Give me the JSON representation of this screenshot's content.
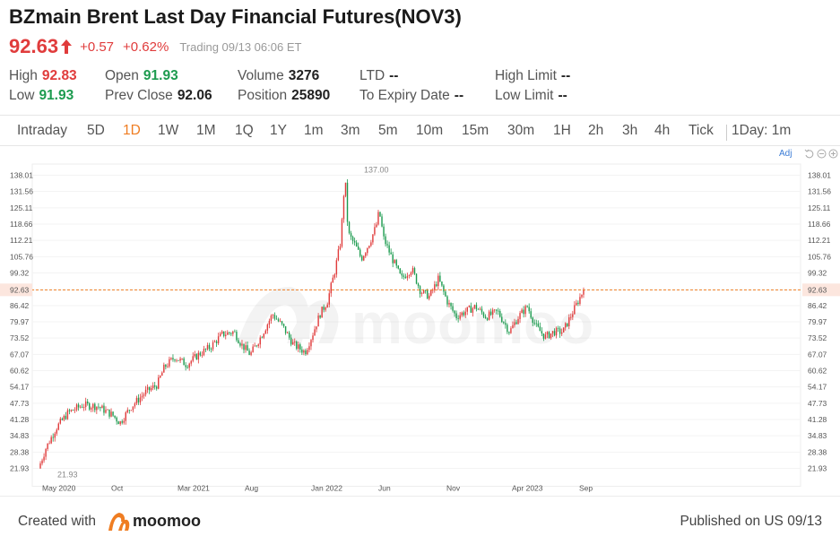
{
  "header": {
    "title": "BZmain Brent Last Day Financial Futures(NOV3)",
    "price": "92.63",
    "change": "+0.57",
    "change_pct": "+0.62%",
    "trading_status": "Trading 09/13 06:06 ET",
    "up_color": "#e03c3c",
    "down_color": "#1d9b4f",
    "accent_color": "#ef7d22"
  },
  "stats": {
    "high_label": "High",
    "high_value": "92.83",
    "low_label": "Low",
    "low_value": "91.93",
    "open_label": "Open",
    "open_value": "91.93",
    "prev_close_label": "Prev Close",
    "prev_close_value": "92.06",
    "volume_label": "Volume",
    "volume_value": "3276",
    "position_label": "Position",
    "position_value": "25890",
    "ltd_label": "LTD",
    "ltd_value": "--",
    "expiry_label": "To Expiry Date",
    "expiry_value": "--",
    "high_limit_label": "High Limit",
    "high_limit_value": "--",
    "low_limit_label": "Low Limit",
    "low_limit_value": "--"
  },
  "tabs": [
    "Intraday",
    "5D",
    "1D",
    "1W",
    "1M",
    "1Q",
    "1Y",
    "1m",
    "3m",
    "5m",
    "10m",
    "15m",
    "30m",
    "1H",
    "2h",
    "3h",
    "4h",
    "Tick"
  ],
  "active_tab": "1D",
  "interval_label": "1Day: 1m",
  "chart_controls": {
    "adj_label": "Adj",
    "reset_icon": "undo-icon",
    "zoom_out_icon": "minus-circle-icon",
    "zoom_in_icon": "plus-circle-icon"
  },
  "watermark": "moomoo",
  "footer": {
    "created_label": "Created with",
    "brand": "moomoo",
    "published": "Published on US 09/13"
  },
  "chart_data": {
    "type": "candlestick",
    "ylim": [
      21.93,
      138.01
    ],
    "y_ticks": [
      "138.01",
      "131.56",
      "125.11",
      "118.66",
      "112.21",
      "105.76",
      "99.32",
      "92.63",
      "86.42",
      "79.97",
      "73.52",
      "67.07",
      "60.62",
      "54.17",
      "47.73",
      "41.28",
      "34.83",
      "28.38",
      "21.93"
    ],
    "x_ticks": [
      "May 2020",
      "Oct",
      "Mar 2021",
      "Aug",
      "Jan 2022",
      "Jun",
      "Nov",
      "Apr 2023",
      "Sep"
    ],
    "last_price": 92.63,
    "max_label": "137.00",
    "min_label": "21.93",
    "up_color": "#e03c3c",
    "down_color": "#1d9b4f",
    "last_price_line_color": "#ef7d22",
    "series": [
      {
        "values": [
          [
            0,
            21.93
          ],
          [
            5,
            30
          ],
          [
            12,
            38
          ],
          [
            20,
            44
          ],
          [
            30,
            47
          ],
          [
            40,
            46.5
          ],
          [
            50,
            43
          ],
          [
            55,
            40
          ],
          [
            62,
            46
          ],
          [
            72,
            52
          ],
          [
            80,
            55
          ],
          [
            85,
            62
          ],
          [
            92,
            66
          ],
          [
            100,
            63
          ],
          [
            108,
            67
          ],
          [
            116,
            70
          ],
          [
            124,
            75
          ],
          [
            132,
            76
          ],
          [
            137,
            71
          ],
          [
            143,
            67
          ],
          [
            150,
            74
          ],
          [
            158,
            83
          ],
          [
            165,
            78
          ],
          [
            172,
            71
          ],
          [
            180,
            68
          ],
          [
            185,
            75
          ],
          [
            190,
            83
          ],
          [
            195,
            88
          ],
          [
            200,
            100
          ],
          [
            204,
            112
          ],
          [
            206,
            130
          ],
          [
            207,
            137
          ],
          [
            209,
            115
          ],
          [
            214,
            110
          ],
          [
            218,
            105
          ],
          [
            224,
            112
          ],
          [
            228,
            118
          ],
          [
            230,
            124
          ],
          [
            233,
            113
          ],
          [
            238,
            106
          ],
          [
            245,
            97
          ],
          [
            252,
            101
          ],
          [
            258,
            92
          ],
          [
            264,
            90
          ],
          [
            270,
            97
          ],
          [
            276,
            88
          ],
          [
            282,
            82
          ],
          [
            288,
            84
          ],
          [
            295,
            86
          ],
          [
            302,
            82
          ],
          [
            310,
            84
          ],
          [
            318,
            76
          ],
          [
            324,
            82
          ],
          [
            330,
            86
          ],
          [
            336,
            78
          ],
          [
            342,
            74
          ],
          [
            348,
            76
          ],
          [
            354,
            76
          ],
          [
            360,
            83
          ],
          [
            365,
            89
          ],
          [
            368,
            92.63
          ]
        ]
      }
    ]
  }
}
